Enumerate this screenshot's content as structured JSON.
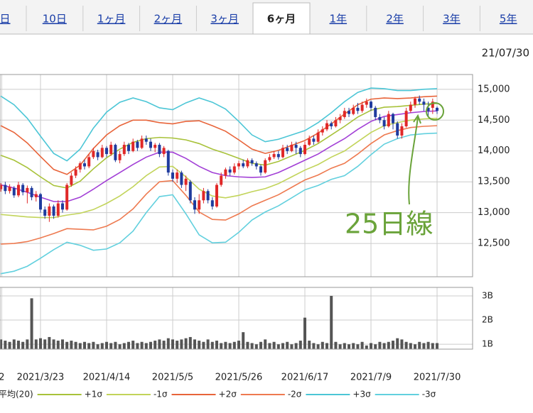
{
  "tabs": [
    {
      "label": "日",
      "selected": false
    },
    {
      "label": "10日",
      "selected": false
    },
    {
      "label": "1ヶ月",
      "selected": false
    },
    {
      "label": "2ヶ月",
      "selected": false
    },
    {
      "label": "3ヶ月",
      "selected": false
    },
    {
      "label": "6ヶ月",
      "selected": true
    },
    {
      "label": "1年",
      "selected": false
    },
    {
      "label": "2年",
      "selected": false
    },
    {
      "label": "3年",
      "selected": false
    },
    {
      "label": "5年",
      "selected": false
    }
  ],
  "date": "21/07/30",
  "chart_data": {
    "type": "candlestick",
    "annotation": "25日線",
    "up_color": "#e02828",
    "down_color": "#1f3b9e",
    "xlim": [
      -9.19,
      98.06
    ],
    "xticks": [
      {
        "value": -8.8,
        "label": "2"
      },
      {
        "value": 0,
        "label": "2021/3/23"
      },
      {
        "value": 15,
        "label": "2021/4/14"
      },
      {
        "value": 30,
        "label": "2021/5/5"
      },
      {
        "value": 45,
        "label": "2021/5/26"
      },
      {
        "value": 60,
        "label": "2021/6/17"
      },
      {
        "value": 75,
        "label": "2021/7/9"
      },
      {
        "value": 90,
        "label": "2021/7/30"
      }
    ],
    "ylim": [
      11960,
      15240
    ],
    "yticks": [
      {
        "value": 12500,
        "label": "12,500"
      },
      {
        "value": 13000,
        "label": "13,000"
      },
      {
        "value": 13500,
        "label": "13,500"
      },
      {
        "value": 14000,
        "label": "14,000"
      },
      {
        "value": 14500,
        "label": "14,500"
      },
      {
        "value": 15000,
        "label": "15,000"
      }
    ],
    "grid": true,
    "x": [
      -9,
      -8,
      -7,
      -6,
      -5,
      -4,
      -3,
      -2,
      -1,
      0,
      1,
      2,
      3,
      4,
      5,
      6,
      7,
      8,
      9,
      10,
      11,
      12,
      13,
      14,
      15,
      16,
      17,
      18,
      19,
      20,
      21,
      22,
      23,
      24,
      25,
      26,
      27,
      28,
      29,
      30,
      31,
      32,
      33,
      34,
      35,
      36,
      37,
      38,
      39,
      40,
      41,
      42,
      43,
      44,
      45,
      46,
      47,
      48,
      49,
      50,
      51,
      52,
      53,
      54,
      55,
      56,
      57,
      58,
      59,
      60,
      61,
      62,
      63,
      64,
      65,
      66,
      67,
      68,
      69,
      70,
      71,
      72,
      73,
      74,
      75,
      76,
      77,
      78,
      79,
      80,
      81,
      82,
      83,
      84,
      85,
      86,
      87,
      88,
      89,
      90
    ],
    "open": [
      13380,
      13450,
      13350,
      13400,
      13280,
      13450,
      13330,
      13400,
      13250,
      13300,
      13050,
      12950,
      13100,
      12950,
      13150,
      13050,
      13450,
      13600,
      13700,
      13800,
      13750,
      13900,
      13980,
      13900,
      14050,
      13950,
      14100,
      13850,
      13950,
      14100,
      14000,
      14150,
      14050,
      14200,
      14150,
      14050,
      14100,
      13950,
      14000,
      13650,
      13550,
      13650,
      13450,
      13500,
      13200,
      13050,
      13200,
      13350,
      13200,
      13100,
      13450,
      13600,
      13700,
      13650,
      13750,
      13800,
      13750,
      13850,
      13800,
      13750,
      13650,
      13850,
      13900,
      13950,
      13900,
      14050,
      14000,
      14100,
      14050,
      13950,
      14100,
      14200,
      14150,
      14300,
      14350,
      14450,
      14400,
      14500,
      14550,
      14650,
      14600,
      14700,
      14650,
      14750,
      14800,
      14700,
      14550,
      14500,
      14400,
      14600,
      14450,
      14250,
      14400,
      14650,
      14750,
      14850,
      14800,
      14700,
      14700,
      14700
    ],
    "high": [
      13480,
      13500,
      13460,
      13430,
      13500,
      13480,
      13440,
      13430,
      13350,
      13320,
      13100,
      13150,
      13130,
      13200,
      13200,
      13480,
      13650,
      13750,
      13830,
      13860,
      13950,
      14050,
      14020,
      14100,
      14080,
      14150,
      14120,
      14000,
      14150,
      14130,
      14200,
      14180,
      14250,
      14250,
      14200,
      14130,
      14130,
      14080,
      14020,
      13700,
      13700,
      13680,
      13600,
      13530,
      13250,
      13300,
      13400,
      13380,
      13250,
      13480,
      13650,
      13730,
      13750,
      13800,
      13840,
      13860,
      13880,
      13880,
      13830,
      13780,
      13880,
      13950,
      14000,
      14000,
      14100,
      14100,
      14150,
      14150,
      14080,
      14150,
      14250,
      14250,
      14350,
      14400,
      14500,
      14480,
      14550,
      14600,
      14700,
      14700,
      14750,
      14780,
      14800,
      14850,
      14820,
      14730,
      14600,
      14550,
      14650,
      14620,
      14480,
      14450,
      14700,
      14800,
      14880,
      14900,
      14850,
      14800,
      14850,
      14720
    ],
    "low": [
      13340,
      13300,
      13310,
      13240,
      13250,
      13280,
      13150,
      13200,
      13180,
      13000,
      12900,
      12850,
      12900,
      12920,
      13000,
      13030,
      13420,
      13560,
      13650,
      13700,
      13720,
      13870,
      13850,
      13880,
      13900,
      13920,
      13820,
      13800,
      13920,
      13950,
      13980,
      14000,
      14030,
      14100,
      14000,
      13980,
      13900,
      13900,
      13600,
      13500,
      13480,
      13400,
      13350,
      13150,
      12980,
      12980,
      13150,
      13150,
      13050,
      13080,
      13420,
      13550,
      13600,
      13620,
      13700,
      13720,
      13720,
      13760,
      13700,
      13600,
      13630,
      13820,
      13870,
      13860,
      13880,
      13950,
      13980,
      13950,
      13900,
      13930,
      14080,
      14100,
      14130,
      14250,
      14320,
      14350,
      14380,
      14450,
      14520,
      14550,
      14580,
      14600,
      14620,
      14700,
      14650,
      14500,
      14450,
      14350,
      14380,
      14350,
      14200,
      14200,
      14380,
      14620,
      14700,
      14750,
      14650,
      14550,
      14600,
      14600
    ],
    "close": [
      13450,
      13350,
      13420,
      13280,
      13450,
      13330,
      13400,
      13250,
      13300,
      13050,
      12950,
      13100,
      12950,
      13150,
      13050,
      13450,
      13600,
      13700,
      13800,
      13750,
      13900,
      14000,
      13900,
      14050,
      13950,
      14100,
      13850,
      13950,
      14100,
      14000,
      14150,
      14050,
      14200,
      14150,
      14050,
      14100,
      13950,
      14050,
      13650,
      13550,
      13650,
      13450,
      13550,
      13200,
      13050,
      13200,
      13350,
      13200,
      13100,
      13450,
      13600,
      13700,
      13650,
      13750,
      13800,
      13750,
      13850,
      13800,
      13750,
      13650,
      13850,
      13900,
      13950,
      13900,
      14050,
      14000,
      14100,
      14050,
      13950,
      14100,
      14200,
      14150,
      14300,
      14350,
      14450,
      14400,
      14500,
      14550,
      14650,
      14600,
      14700,
      14650,
      14750,
      14800,
      14700,
      14550,
      14500,
      14400,
      14600,
      14450,
      14250,
      14400,
      14650,
      14750,
      14850,
      14800,
      14750,
      14650,
      14800,
      14650
    ],
    "bands": {
      "x": [
        -9,
        -6,
        -3,
        0,
        3,
        6,
        9,
        12,
        15,
        18,
        21,
        24,
        27,
        30,
        33,
        36,
        39,
        42,
        45,
        48,
        51,
        54,
        57,
        60,
        63,
        66,
        69,
        72,
        75,
        78,
        81,
        84,
        87,
        90
      ],
      "series": [
        {
          "name": "平均(20)",
          "color": "#a23fd6",
          "values": [
            13450,
            13400,
            13330,
            13250,
            13180,
            13180,
            13250,
            13380,
            13520,
            13650,
            13780,
            13900,
            13980,
            13980,
            13880,
            13750,
            13650,
            13600,
            13580,
            13570,
            13580,
            13650,
            13750,
            13850,
            13950,
            14080,
            14200,
            14350,
            14480,
            14560,
            14590,
            14620,
            14640,
            14650
          ]
        },
        {
          "name": "+1σ",
          "color": "#a8c23a",
          "values": [
            13930,
            13850,
            13730,
            13580,
            13440,
            13400,
            13510,
            13710,
            13890,
            14030,
            14140,
            14200,
            14220,
            14210,
            14180,
            14120,
            14030,
            13960,
            13880,
            13800,
            13770,
            13830,
            13920,
            14010,
            14120,
            14260,
            14400,
            14550,
            14660,
            14710,
            14720,
            14740,
            14760,
            14770
          ]
        },
        {
          "name": "-1σ",
          "color": "#c2d45a",
          "values": [
            12970,
            12950,
            12930,
            12920,
            12920,
            12960,
            12990,
            13050,
            13150,
            13270,
            13420,
            13600,
            13740,
            13750,
            13580,
            13380,
            13270,
            13240,
            13280,
            13340,
            13390,
            13470,
            13580,
            13690,
            13780,
            13900,
            14000,
            14150,
            14300,
            14410,
            14460,
            14500,
            14520,
            14530
          ]
        },
        {
          "name": "+2σ",
          "color": "#e8643a",
          "values": [
            14410,
            14300,
            14130,
            13910,
            13700,
            13620,
            13770,
            14040,
            14260,
            14410,
            14500,
            14500,
            14460,
            14440,
            14480,
            14490,
            14410,
            14320,
            14180,
            14030,
            13960,
            14010,
            14090,
            14170,
            14290,
            14440,
            14600,
            14750,
            14840,
            14860,
            14850,
            14860,
            14880,
            14890
          ]
        },
        {
          "name": "-2σ",
          "color": "#ee7a50",
          "values": [
            12490,
            12500,
            12530,
            12590,
            12660,
            12740,
            12730,
            12720,
            12780,
            12890,
            13060,
            13300,
            13500,
            13520,
            13280,
            13010,
            12890,
            12880,
            12980,
            13110,
            13200,
            13290,
            13410,
            13530,
            13610,
            13720,
            13800,
            13950,
            14120,
            14260,
            14330,
            14380,
            14400,
            14410
          ]
        },
        {
          "name": "+3σ",
          "color": "#4cc6d6",
          "values": [
            14890,
            14750,
            14530,
            14240,
            13960,
            13840,
            14030,
            14370,
            14630,
            14790,
            14860,
            14800,
            14700,
            14670,
            14780,
            14860,
            14790,
            14680,
            14480,
            14260,
            14150,
            14190,
            14260,
            14330,
            14460,
            14620,
            14800,
            14950,
            15020,
            15010,
            14980,
            14980,
            15000,
            15010
          ]
        },
        {
          "name": "-3σ",
          "color": "#62d0de",
          "values": [
            12010,
            12050,
            12130,
            12260,
            12400,
            12520,
            12470,
            12390,
            12410,
            12510,
            12700,
            13000,
            13260,
            13290,
            12980,
            12640,
            12510,
            12520,
            12680,
            12880,
            13010,
            13110,
            13240,
            13370,
            13440,
            13540,
            13600,
            13750,
            13940,
            14110,
            14200,
            14260,
            14280,
            14290
          ]
        }
      ]
    },
    "volume": {
      "color": "#555555",
      "ylim": [
        0.8,
        3.35
      ],
      "yticks": [
        {
          "value": 1,
          "label": "1B"
        },
        {
          "value": 2,
          "label": "2B"
        },
        {
          "value": 3,
          "label": "3B"
        }
      ],
      "values": [
        1.2,
        1.15,
        1.1,
        1.2,
        1.15,
        1.1,
        1.2,
        2.9,
        1.2,
        1.25,
        1.2,
        1.3,
        1.2,
        1.15,
        1.2,
        1.1,
        1.15,
        1.1,
        1.05,
        1.1,
        1.05,
        1.1,
        1.0,
        1.05,
        1.1,
        1.05,
        1.1,
        1.0,
        1.05,
        1.1,
        1.15,
        1.05,
        1.1,
        1.05,
        1.1,
        1.15,
        1.2,
        1.15,
        1.25,
        1.2,
        1.15,
        1.2,
        1.25,
        1.3,
        1.2,
        1.15,
        1.1,
        1.2,
        1.1,
        1.15,
        1.05,
        1.1,
        1.05,
        1.1,
        1.15,
        1.5,
        1.1,
        1.05,
        1.0,
        1.1,
        1.2,
        1.05,
        1.1,
        1.0,
        1.05,
        1.1,
        1.0,
        1.05,
        1.15,
        2.1,
        1.15,
        1.05,
        1.0,
        1.1,
        1.05,
        3.0,
        1.1,
        1.0,
        1.05,
        1.0,
        1.05,
        1.0,
        1.1,
        0.95,
        1.05,
        1.0,
        1.1,
        1.05,
        1.1,
        1.15,
        1.25,
        1.2,
        1.1,
        1.05,
        1.0,
        1.1,
        1.05,
        1.1,
        1.05,
        1.05
      ]
    }
  }
}
